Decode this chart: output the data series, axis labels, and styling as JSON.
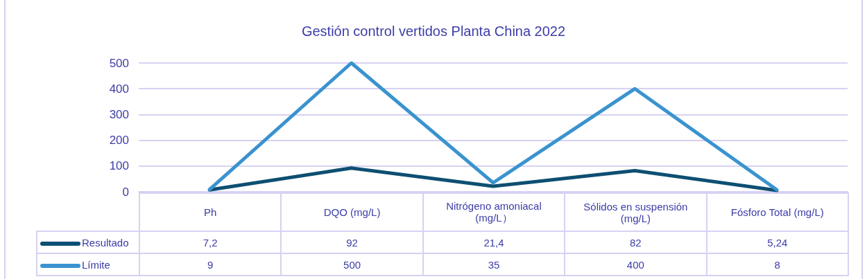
{
  "chart_data": {
    "type": "line",
    "title": "Gestión control vertidos Planta China 2022",
    "categories": [
      "Ph",
      "DQO (mg/L)",
      "Nitrógeno amoniacal (mg/L）",
      "Sólidos en suspensión (mg/L)",
      "Fósforo Total (mg/L)"
    ],
    "series": [
      {
        "name": "Resultado",
        "color": "#0d4f72",
        "values": [
          7.2,
          92,
          21.4,
          82,
          5.24
        ],
        "value_labels": [
          "7,2",
          "92",
          "21,4",
          "82",
          "5,24"
        ]
      },
      {
        "name": "Límite",
        "color": "#3a93cf",
        "values": [
          9,
          500,
          35,
          400,
          8
        ],
        "value_labels": [
          "9",
          "500",
          "35",
          "400",
          "8"
        ]
      }
    ],
    "ylim": [
      0,
      500
    ],
    "yticks": [
      0,
      100,
      200,
      300,
      400,
      500
    ],
    "grid": "y",
    "legend": "bottom",
    "marker": "none",
    "line_style": "solid"
  }
}
